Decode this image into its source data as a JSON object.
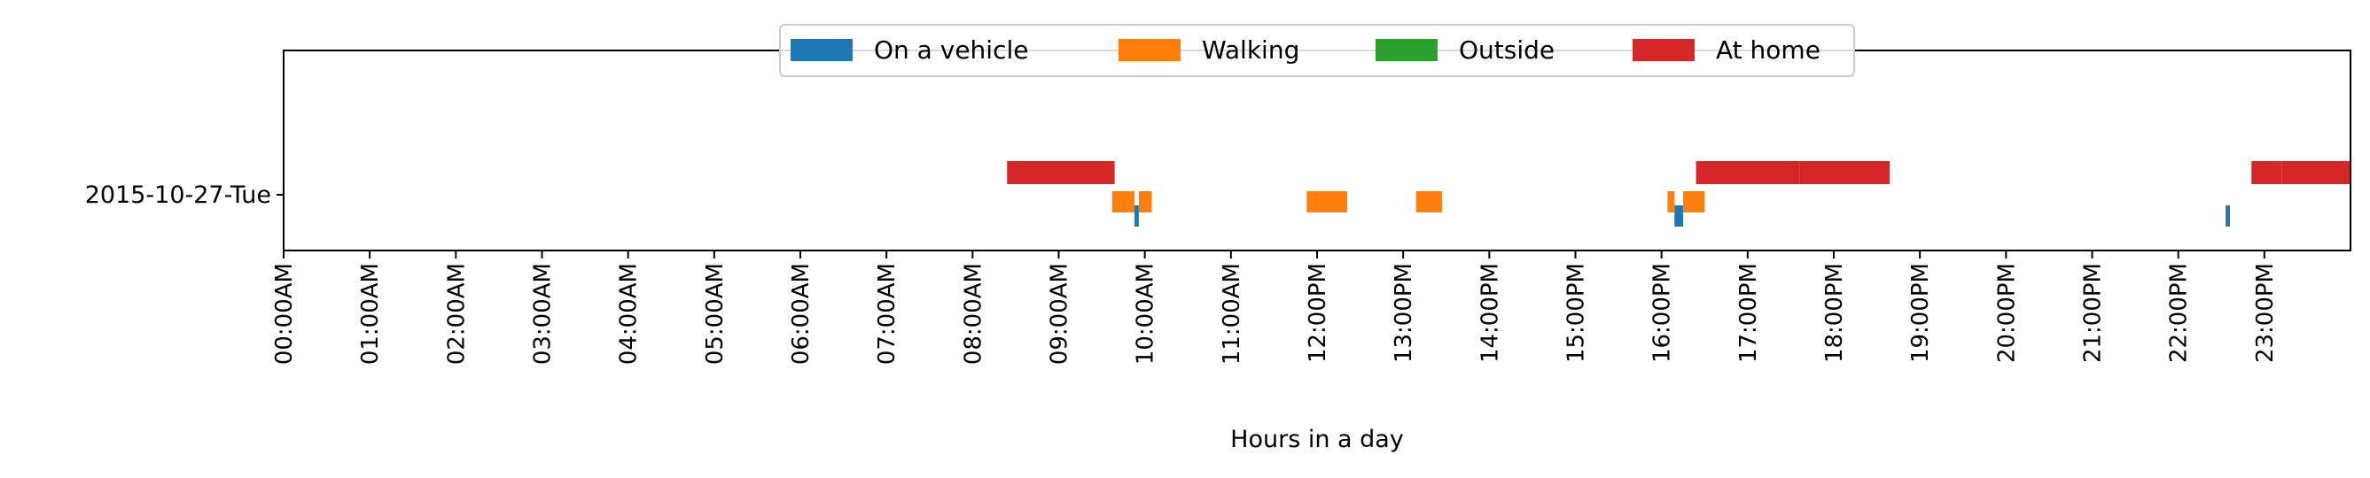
{
  "chart_data": {
    "type": "timeline",
    "xlabel": "Hours in a day",
    "ylabel": "",
    "title": "",
    "xlim": [
      0,
      24
    ],
    "x_ticks": [
      {
        "value": 0,
        "label": "00:00AM"
      },
      {
        "value": 1,
        "label": "01:00AM"
      },
      {
        "value": 2,
        "label": "02:00AM"
      },
      {
        "value": 3,
        "label": "03:00AM"
      },
      {
        "value": 4,
        "label": "04:00AM"
      },
      {
        "value": 5,
        "label": "05:00AM"
      },
      {
        "value": 6,
        "label": "06:00AM"
      },
      {
        "value": 7,
        "label": "07:00AM"
      },
      {
        "value": 8,
        "label": "08:00AM"
      },
      {
        "value": 9,
        "label": "09:00AM"
      },
      {
        "value": 10,
        "label": "10:00AM"
      },
      {
        "value": 11,
        "label": "11:00AM"
      },
      {
        "value": 12,
        "label": "12:00PM"
      },
      {
        "value": 13,
        "label": "13:00PM"
      },
      {
        "value": 14,
        "label": "14:00PM"
      },
      {
        "value": 15,
        "label": "15:00PM"
      },
      {
        "value": 16,
        "label": "16:00PM"
      },
      {
        "value": 17,
        "label": "17:00PM"
      },
      {
        "value": 18,
        "label": "18:00PM"
      },
      {
        "value": 19,
        "label": "19:00PM"
      },
      {
        "value": 20,
        "label": "20:00PM"
      },
      {
        "value": 21,
        "label": "21:00PM"
      },
      {
        "value": 22,
        "label": "22:00PM"
      },
      {
        "value": 23,
        "label": "23:00PM"
      }
    ],
    "categories": [
      "2015-10-27-Tue"
    ],
    "legend": {
      "placement": "upper-center",
      "columns": 4
    },
    "grid": false,
    "series": [
      {
        "name": "On a vehicle",
        "color": "#1f77b4",
        "intervals": [
          [
            9.88,
            9.93
          ],
          [
            16.15,
            16.25
          ],
          [
            22.55,
            22.6
          ]
        ]
      },
      {
        "name": "Walking",
        "color": "#ff7f0e",
        "intervals": [
          [
            9.62,
            9.88
          ],
          [
            9.93,
            10.08
          ],
          [
            11.88,
            12.35
          ],
          [
            13.15,
            13.45
          ],
          [
            16.07,
            16.15
          ],
          [
            16.25,
            16.5
          ]
        ]
      },
      {
        "name": "Outside",
        "color": "#2ca02c",
        "intervals": []
      },
      {
        "name": "At home",
        "color": "#d62728",
        "intervals": [
          [
            8.4,
            9.65
          ],
          [
            16.4,
            17.6
          ],
          [
            17.6,
            18.65
          ],
          [
            22.85,
            23.2
          ],
          [
            23.2,
            24
          ]
        ]
      }
    ]
  }
}
